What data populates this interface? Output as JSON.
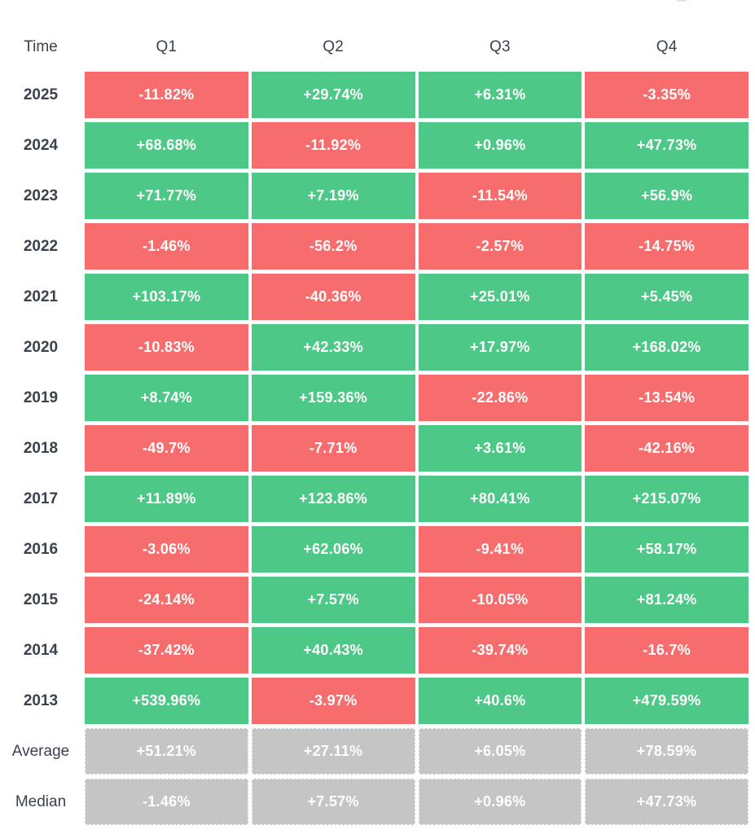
{
  "colors": {
    "positive_cell": "#4ec887",
    "negative_cell": "#f76d6d",
    "neutral_cell": "#c5c5c5",
    "label_text": "#3a424d",
    "cell_text": "#ffffff"
  },
  "chart_data": {
    "type": "table",
    "subtype": "quarterly-returns-heatmap",
    "corner_label": "Time",
    "columns": [
      "Q1",
      "Q2",
      "Q3",
      "Q4"
    ],
    "legend": "green = positive return, red = negative return, gray = summary statistic",
    "rows": [
      {
        "label": "2025",
        "style": "signed",
        "values": [
          -11.82,
          29.74,
          6.31,
          -3.35
        ],
        "display": [
          "-11.82%",
          "+29.74%",
          "+6.31%",
          "-3.35%"
        ]
      },
      {
        "label": "2024",
        "style": "signed",
        "values": [
          68.68,
          -11.92,
          0.96,
          47.73
        ],
        "display": [
          "+68.68%",
          "-11.92%",
          "+0.96%",
          "+47.73%"
        ]
      },
      {
        "label": "2023",
        "style": "signed",
        "values": [
          71.77,
          7.19,
          -11.54,
          56.9
        ],
        "display": [
          "+71.77%",
          "+7.19%",
          "-11.54%",
          "+56.9%"
        ]
      },
      {
        "label": "2022",
        "style": "signed",
        "values": [
          -1.46,
          -56.2,
          -2.57,
          -14.75
        ],
        "display": [
          "-1.46%",
          "-56.2%",
          "-2.57%",
          "-14.75%"
        ]
      },
      {
        "label": "2021",
        "style": "signed",
        "values": [
          103.17,
          -40.36,
          25.01,
          5.45
        ],
        "display": [
          "+103.17%",
          "-40.36%",
          "+25.01%",
          "+5.45%"
        ]
      },
      {
        "label": "2020",
        "style": "signed",
        "values": [
          -10.83,
          42.33,
          17.97,
          168.02
        ],
        "display": [
          "-10.83%",
          "+42.33%",
          "+17.97%",
          "+168.02%"
        ]
      },
      {
        "label": "2019",
        "style": "signed",
        "values": [
          8.74,
          159.36,
          -22.86,
          -13.54
        ],
        "display": [
          "+8.74%",
          "+159.36%",
          "-22.86%",
          "-13.54%"
        ]
      },
      {
        "label": "2018",
        "style": "signed",
        "values": [
          -49.7,
          -7.71,
          3.61,
          -42.16
        ],
        "display": [
          "-49.7%",
          "-7.71%",
          "+3.61%",
          "-42.16%"
        ]
      },
      {
        "label": "2017",
        "style": "signed",
        "values": [
          11.89,
          123.86,
          80.41,
          215.07
        ],
        "display": [
          "+11.89%",
          "+123.86%",
          "+80.41%",
          "+215.07%"
        ]
      },
      {
        "label": "2016",
        "style": "signed",
        "values": [
          -3.06,
          62.06,
          -9.41,
          58.17
        ],
        "display": [
          "-3.06%",
          "+62.06%",
          "-9.41%",
          "+58.17%"
        ]
      },
      {
        "label": "2015",
        "style": "signed",
        "values": [
          -24.14,
          7.57,
          -10.05,
          81.24
        ],
        "display": [
          "-24.14%",
          "+7.57%",
          "-10.05%",
          "+81.24%"
        ]
      },
      {
        "label": "2014",
        "style": "signed",
        "values": [
          -37.42,
          40.43,
          -39.74,
          -16.7
        ],
        "display": [
          "-37.42%",
          "+40.43%",
          "-39.74%",
          "-16.7%"
        ]
      },
      {
        "label": "2013",
        "style": "signed",
        "values": [
          539.96,
          -3.97,
          40.6,
          479.59
        ],
        "display": [
          "+539.96%",
          "-3.97%",
          "+40.6%",
          "+479.59%"
        ]
      },
      {
        "label": "Average",
        "style": "neutral",
        "values": [
          51.21,
          27.11,
          6.05,
          78.59
        ],
        "display": [
          "+51.21%",
          "+27.11%",
          "+6.05%",
          "+78.59%"
        ]
      },
      {
        "label": "Median",
        "style": "neutral",
        "values": [
          -1.46,
          7.57,
          0.96,
          47.73
        ],
        "display": [
          "-1.46%",
          "+7.57%",
          "+0.96%",
          "+47.73%"
        ]
      }
    ]
  }
}
